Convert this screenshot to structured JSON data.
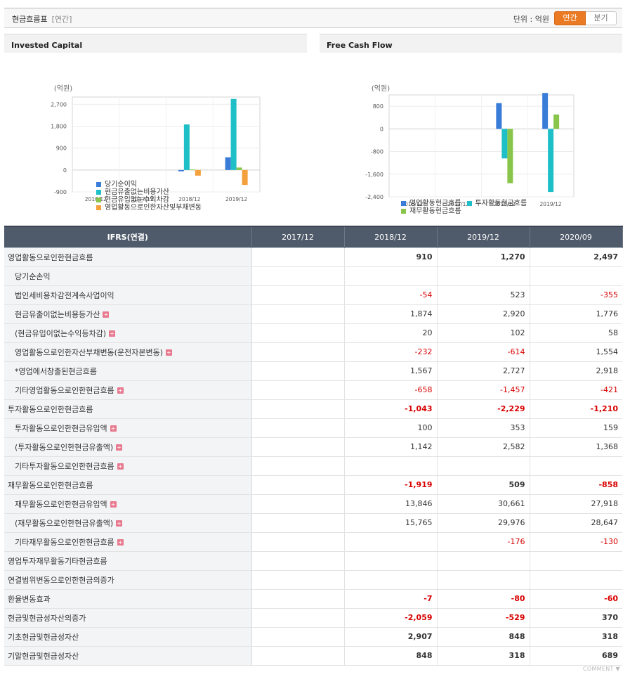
{
  "header": {
    "title": "현금흐름표",
    "subtitle": "[연간]",
    "unit_label": "단위 : 억원",
    "toggle": {
      "annual": "연간",
      "quarterly": "분기"
    }
  },
  "charts": {
    "invested": {
      "title": "Invested Capital",
      "unit": "(억원)"
    },
    "fcf": {
      "title": "Free Cash Flow",
      "unit": "(억원)"
    }
  },
  "chart_data": [
    {
      "type": "bar",
      "title": "Invested Capital",
      "ylabel": "(억원)",
      "categories": [
        "2016/12",
        "2017/12",
        "2018/12",
        "2019/12"
      ],
      "yticks": [
        -900,
        0,
        900,
        1800,
        2700
      ],
      "ylim": [
        -900,
        3000
      ],
      "series": [
        {
          "name": "당기순이익",
          "color": "#3a7dd8",
          "values": [
            null,
            null,
            -54,
            523
          ]
        },
        {
          "name": "현금유출없는비용가산",
          "color": "#1fbfc8",
          "values": [
            null,
            null,
            1874,
            2920
          ]
        },
        {
          "name": "현금유입없는수익차감",
          "color": "#8ac54b",
          "values": [
            null,
            null,
            20,
            102
          ]
        },
        {
          "name": "영업활동으로인한자산및부채변동",
          "color": "#f4a03c",
          "values": [
            null,
            null,
            -232,
            -614
          ]
        }
      ]
    },
    {
      "type": "bar",
      "title": "Free Cash Flow",
      "ylabel": "(억원)",
      "categories": [
        "2016/12",
        "2017/12",
        "2018/12",
        "2019/12"
      ],
      "yticks": [
        -2400,
        -1600,
        -800,
        0,
        800
      ],
      "ylim": [
        -2400,
        1200
      ],
      "series": [
        {
          "name": "영업활동현금흐름",
          "color": "#3a7dd8",
          "values": [
            null,
            null,
            910,
            1270
          ]
        },
        {
          "name": "투자활동현금흐름",
          "color": "#1fbfc8",
          "values": [
            null,
            null,
            -1043,
            -2229
          ]
        },
        {
          "name": "재무활동현금흐름",
          "color": "#8ac54b",
          "values": [
            null,
            null,
            -1919,
            509
          ]
        }
      ]
    }
  ],
  "table": {
    "headers": [
      "IFRS(연결)",
      "2017/12",
      "2018/12",
      "2019/12",
      "2020/09"
    ],
    "rows": [
      {
        "label": "영업활동으로인한현금흐름",
        "main": true,
        "values": [
          "",
          "910",
          "1,270",
          "2,497"
        ]
      },
      {
        "label": "당기순손익",
        "values": [
          "",
          "",
          "",
          ""
        ]
      },
      {
        "label": "법인세비용차감전계속사업이익",
        "values": [
          "",
          "-54",
          "523",
          "-355"
        ]
      },
      {
        "label": "현금유출이없는비용등가산",
        "plus": true,
        "values": [
          "",
          "1,874",
          "2,920",
          "1,776"
        ]
      },
      {
        "label": "(현금유입이없는수익등차감)",
        "plus": true,
        "values": [
          "",
          "20",
          "102",
          "58"
        ]
      },
      {
        "label": "영업활동으로인한자산부채변동(운전자본변동)",
        "plus": true,
        "values": [
          "",
          "-232",
          "-614",
          "1,554"
        ]
      },
      {
        "label": "*영업에서창출된현금흐름",
        "values": [
          "",
          "1,567",
          "2,727",
          "2,918"
        ]
      },
      {
        "label": "기타영업활동으로인한현금흐름",
        "plus": true,
        "values": [
          "",
          "-658",
          "-1,457",
          "-421"
        ]
      },
      {
        "label": "투자활동으로인한현금흐름",
        "main": true,
        "values": [
          "",
          "-1,043",
          "-2,229",
          "-1,210"
        ]
      },
      {
        "label": "투자활동으로인한현금유입액",
        "plus": true,
        "values": [
          "",
          "100",
          "353",
          "159"
        ]
      },
      {
        "label": "(투자활동으로인한현금유출액)",
        "plus": true,
        "values": [
          "",
          "1,142",
          "2,582",
          "1,368"
        ]
      },
      {
        "label": "기타투자활동으로인한현금흐름",
        "plus": true,
        "values": [
          "",
          "",
          "",
          ""
        ]
      },
      {
        "label": "재무활동으로인한현금흐름",
        "main": true,
        "values": [
          "",
          "-1,919",
          "509",
          "-858"
        ]
      },
      {
        "label": "재무활동으로인한현금유입액",
        "plus": true,
        "values": [
          "",
          "13,846",
          "30,661",
          "27,918"
        ]
      },
      {
        "label": "(재무활동으로인한현금유출액)",
        "plus": true,
        "values": [
          "",
          "15,765",
          "29,976",
          "28,647"
        ]
      },
      {
        "label": "기타재무활동으로인한현금흐름",
        "plus": true,
        "values": [
          "",
          "",
          "-176",
          "-130"
        ]
      },
      {
        "label": "영업투자재무활동기타현금흐름",
        "main": true,
        "values": [
          "",
          "",
          "",
          ""
        ]
      },
      {
        "label": "연결범위변동으로인한현금의증가",
        "main": true,
        "values": [
          "",
          "",
          "",
          ""
        ]
      },
      {
        "label": "환율변동효과",
        "main": true,
        "values": [
          "",
          "-7",
          "-80",
          "-60"
        ]
      },
      {
        "label": "현금및현금성자산의증가",
        "main": true,
        "values": [
          "",
          "-2,059",
          "-529",
          "370"
        ]
      },
      {
        "label": "기초현금및현금성자산",
        "main": true,
        "values": [
          "",
          "2,907",
          "848",
          "318"
        ]
      },
      {
        "label": "기말현금및현금성자산",
        "main": true,
        "values": [
          "",
          "848",
          "318",
          "689"
        ]
      }
    ]
  },
  "footer": {
    "comment": "COMMENT ▼"
  }
}
